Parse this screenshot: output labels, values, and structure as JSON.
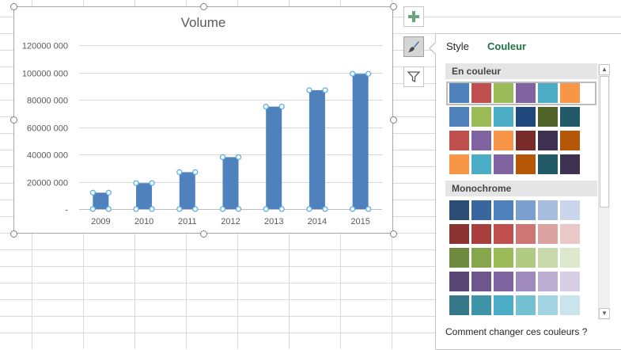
{
  "chart": {
    "title": "Volume"
  },
  "chart_data": {
    "type": "bar",
    "title": "Volume",
    "categories": [
      "2009",
      "2010",
      "2011",
      "2012",
      "2013",
      "2014",
      "2015"
    ],
    "values": [
      12000000,
      19000000,
      27000000,
      38000000,
      75000000,
      87000000,
      99000000
    ],
    "ylim": [
      0,
      120000000
    ],
    "yticks": [
      "-",
      "20000 000",
      "40000 000",
      "60000 000",
      "80000 000",
      "100000 000",
      "120000 000"
    ],
    "grid": true,
    "colors": {
      "bar": "#4f81bd",
      "selection": "#5bb0ea"
    }
  },
  "side_buttons": {
    "add_element": "plus-icon",
    "styles": "brush-icon",
    "filter": "filter-icon"
  },
  "panel": {
    "tabs": {
      "style": "Style",
      "color": "Couleur"
    },
    "colorful_header": "En couleur",
    "mono_header": "Monochrome",
    "help_link": "Comment changer ces couleurs ?",
    "accent_color": "#217346",
    "colorful_rows": [
      [
        "#4f81bd",
        "#c0504d",
        "#9bbb59",
        "#8064a2",
        "#4bacc6",
        "#f79646"
      ],
      [
        "#4f81bd",
        "#9bbb59",
        "#4bacc6",
        "#1f497d",
        "#4f6228",
        "#215968"
      ],
      [
        "#c0504d",
        "#8064a2",
        "#f79646",
        "#772c2a",
        "#3f3151",
        "#b65708"
      ],
      [
        "#f79646",
        "#4bacc6",
        "#8064a2",
        "#b65708",
        "#215968",
        "#3f3151"
      ]
    ],
    "mono_rows": [
      [
        "#2c4d75",
        "#3a66a0",
        "#4f81bd",
        "#7b9fcf",
        "#a7bde0",
        "#c9d6ec"
      ],
      [
        "#8c3230",
        "#a83f3c",
        "#c0504d",
        "#cd7674",
        "#dba2a1",
        "#e9c8c7"
      ],
      [
        "#6e8a3e",
        "#86a64c",
        "#9bbb59",
        "#b2cb84",
        "#c7d9aa",
        "#dce8cc"
      ],
      [
        "#5a4675",
        "#6d568d",
        "#8064a2",
        "#9f89bd",
        "#bcaed3",
        "#d6cde6"
      ],
      [
        "#35788a",
        "#3f93a9",
        "#4bacc6",
        "#76c0d4",
        "#a3d4e1",
        "#c8e5ee"
      ]
    ]
  }
}
